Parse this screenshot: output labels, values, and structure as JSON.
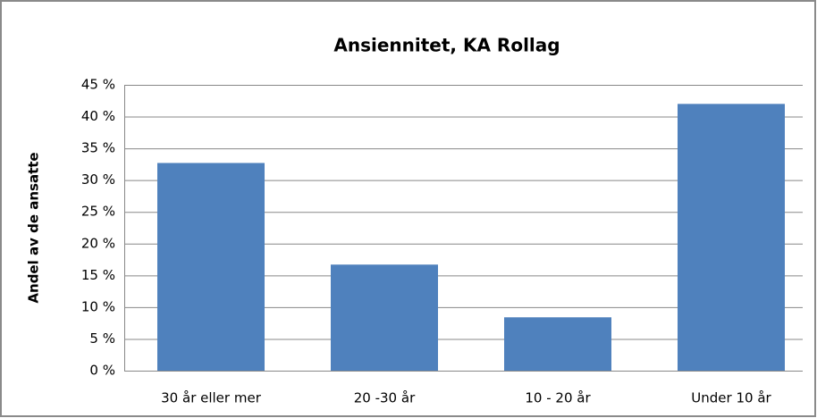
{
  "chart_data": {
    "type": "bar",
    "title": "Ansiennitet, KA Rollag",
    "y_label": "Andel av de ansatte",
    "categories": [
      "30 år eller mer",
      "20 -30 år",
      "10 - 20 år",
      "Under 10 år"
    ],
    "values": [
      32.7,
      16.7,
      8.4,
      42.0
    ],
    "color": "#4f81bd",
    "ylim": [
      0,
      45
    ],
    "yticks": [
      {
        "value": 0,
        "label": "0 %"
      },
      {
        "value": 5,
        "label": "5 %"
      },
      {
        "value": 10,
        "label": "10 %"
      },
      {
        "value": 15,
        "label": "15 %"
      },
      {
        "value": 20,
        "label": "20 %"
      },
      {
        "value": 25,
        "label": "25 %"
      },
      {
        "value": 30,
        "label": "30 %"
      },
      {
        "value": 35,
        "label": "35 %"
      },
      {
        "value": 40,
        "label": "40 %"
      },
      {
        "value": 45,
        "label": "45 %"
      }
    ],
    "grid": true
  }
}
